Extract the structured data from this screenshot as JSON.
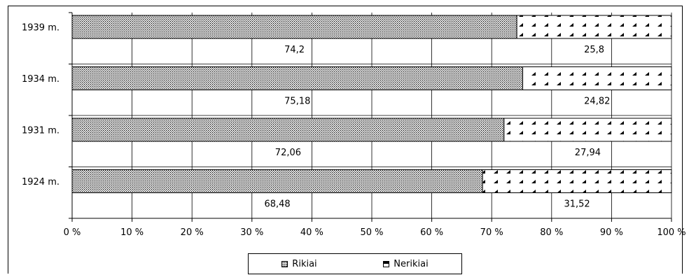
{
  "chart_data": {
    "type": "bar",
    "orientation": "horizontal",
    "stacked": "percent",
    "categories": [
      "1939 m.",
      "1934 m.",
      "1931 m.",
      "1924 m."
    ],
    "series": [
      {
        "name": "Rikiai",
        "values": [
          74.2,
          75.18,
          72.06,
          68.48
        ],
        "labels": [
          "74,2",
          "75,18",
          "72,06",
          "68,48"
        ]
      },
      {
        "name": "Nerikiai",
        "values": [
          25.8,
          24.82,
          27.94,
          31.52
        ],
        "labels": [
          "25,8",
          "24,82",
          "27,94",
          "31,52"
        ]
      }
    ],
    "x_ticks": [
      "0 %",
      "10 %",
      "20 %",
      "30 %",
      "40 %",
      "50 %",
      "60 %",
      "70 %",
      "80 %",
      "90 %",
      "100 %"
    ],
    "xlim": [
      0,
      100
    ],
    "grid": "vertical",
    "legend": "bottom-center",
    "title": "",
    "xlabel": "",
    "ylabel": ""
  },
  "legend": {
    "items": [
      "Rikiai",
      "Nerikiai"
    ]
  }
}
